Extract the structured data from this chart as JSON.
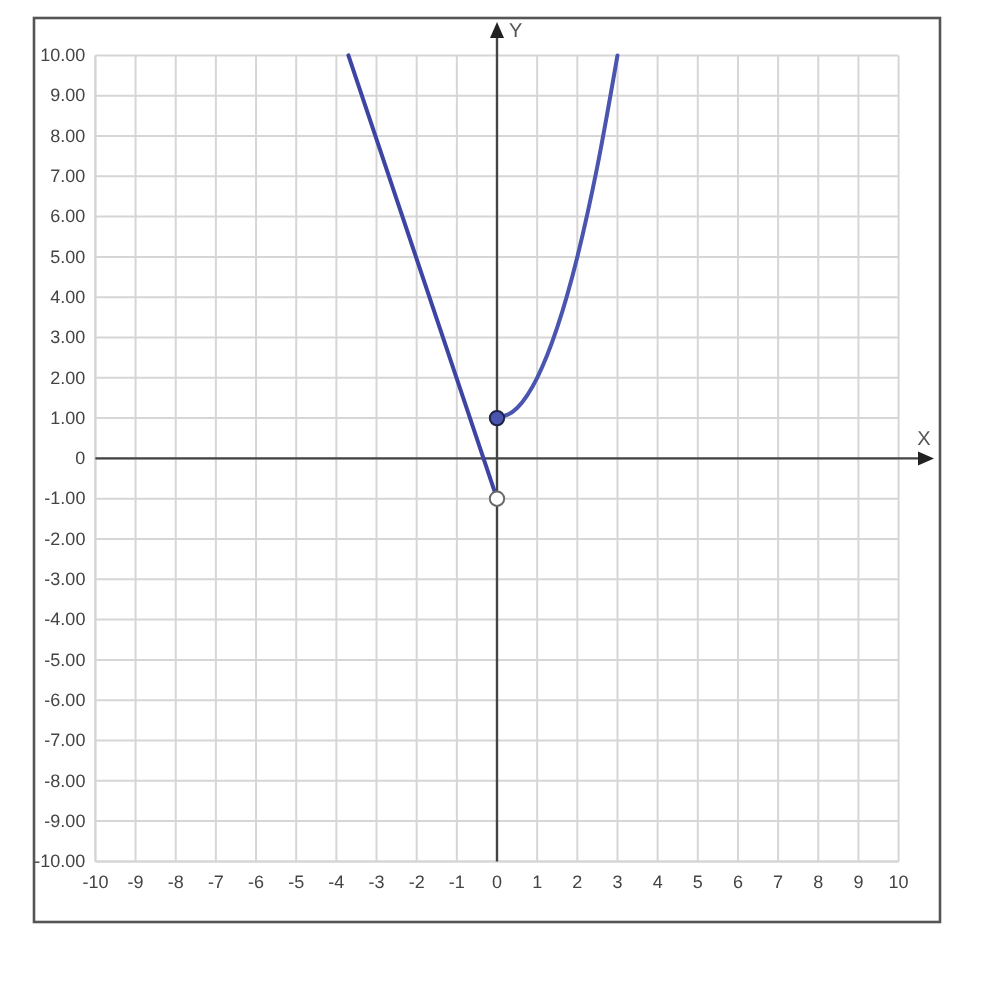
{
  "chart_data": {
    "type": "line",
    "xlabel": "X",
    "ylabel": "Y",
    "xlim": [
      -10,
      10
    ],
    "ylim": [
      -10,
      10
    ],
    "xticks": [
      -10,
      -9,
      -8,
      -7,
      -6,
      -5,
      -4,
      -3,
      -2,
      -1,
      0,
      1,
      2,
      3,
      4,
      5,
      6,
      7,
      8,
      9,
      10
    ],
    "yticks": [
      {
        "value": -10,
        "label": "-10.00"
      },
      {
        "value": -9,
        "label": "-9.00"
      },
      {
        "value": -8,
        "label": "-8.00"
      },
      {
        "value": -7,
        "label": "-7.00"
      },
      {
        "value": -6,
        "label": "-6.00"
      },
      {
        "value": -5,
        "label": "-5.00"
      },
      {
        "value": -4,
        "label": "-4.00"
      },
      {
        "value": -3,
        "label": "-3.00"
      },
      {
        "value": -2,
        "label": "-2.00"
      },
      {
        "value": -1,
        "label": "-1.00"
      },
      0,
      {
        "value": 1,
        "label": "1.00"
      },
      {
        "value": 2,
        "label": "2.00"
      },
      {
        "value": 3,
        "label": "3.00"
      },
      {
        "value": 4,
        "label": "4.00"
      },
      {
        "value": 5,
        "label": "5.00"
      },
      {
        "value": 6,
        "label": "6.00"
      },
      {
        "value": 7,
        "label": "7.00"
      },
      {
        "value": 8,
        "label": "8.00"
      },
      {
        "value": 9,
        "label": "9.00"
      },
      {
        "value": 10,
        "label": "10.00"
      }
    ],
    "grid": true,
    "series": [
      {
        "type": "line",
        "color": "#3d44a3",
        "x": [
          -3.7,
          0
        ],
        "values": [
          10,
          -1
        ]
      },
      {
        "type": "line",
        "color": "#4a55b0",
        "x": [
          0,
          0.5,
          1,
          1.5,
          2,
          2.5,
          3
        ],
        "values": [
          1,
          1.25,
          2,
          3.25,
          5,
          7.25,
          10
        ]
      },
      {
        "type": "scatter",
        "color": "#4a55b0",
        "marker": "circle",
        "x": [
          0
        ],
        "values": [
          1
        ]
      },
      {
        "type": "scatter",
        "color": "#ffffff",
        "marker": "circle",
        "x": [
          0
        ],
        "values": [
          -1
        ]
      }
    ]
  }
}
